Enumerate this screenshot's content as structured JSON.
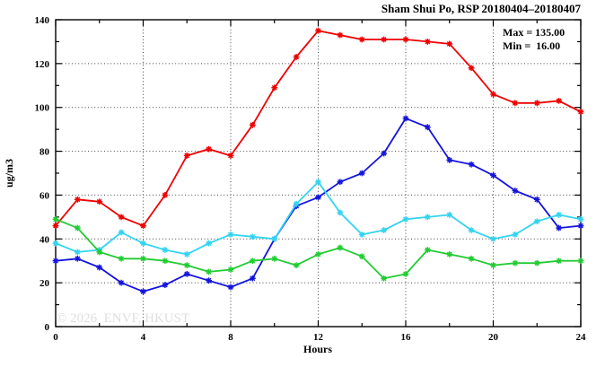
{
  "title": "Sham Shui Po, RSP 20180404–20180407",
  "annotation": {
    "max_label": "Max = 135.00",
    "min_label": "Min =  16.00",
    "max_value": 135.0,
    "min_value": 16.0
  },
  "watermark": "© 2026  ENVF, HKUST",
  "colors": {
    "series_red": "#ee0000",
    "series_blue": "#1414dd",
    "series_cyan": "#33d4f0",
    "series_green": "#22cc33",
    "grid": "#444444",
    "axis": "#000000",
    "watermark": "#dedede"
  },
  "chart_data": {
    "type": "line",
    "title": "Sham Shui Po, RSP 20180404–20180407",
    "xlabel": "Hours",
    "ylabel": "ug/m3",
    "xlim": [
      0,
      24
    ],
    "ylim": [
      0,
      140
    ],
    "x_major_ticks": [
      0,
      4,
      8,
      12,
      16,
      20,
      24
    ],
    "x_minor_ticks": [
      2,
      6,
      10,
      14,
      18,
      22
    ],
    "y_major_ticks": [
      0,
      20,
      40,
      60,
      80,
      100,
      120,
      140
    ],
    "y_minor_ticks": [
      10,
      30,
      50,
      70,
      90,
      110,
      130
    ],
    "grid": true,
    "legend_position": "none",
    "marker": "asterisk",
    "x": [
      0,
      1,
      2,
      3,
      4,
      5,
      6,
      7,
      8,
      9,
      10,
      11,
      12,
      13,
      14,
      15,
      16,
      17,
      18,
      19,
      20,
      21,
      22,
      23,
      24
    ],
    "series": [
      {
        "name": "red-series",
        "color": "#ee0000",
        "values": [
          46,
          58,
          57,
          50,
          46,
          60,
          78,
          81,
          78,
          92,
          109,
          123,
          135,
          133,
          131,
          131,
          131,
          130,
          129,
          118,
          106,
          102,
          102,
          103,
          98
        ]
      },
      {
        "name": "blue-series",
        "color": "#1414dd",
        "values": [
          30,
          31,
          27,
          20,
          16,
          19,
          24,
          21,
          18,
          22,
          40,
          55,
          59,
          66,
          70,
          79,
          95,
          91,
          76,
          74,
          69,
          62,
          58,
          45,
          46
        ]
      },
      {
        "name": "cyan-series",
        "color": "#33d4f0",
        "values": [
          38,
          34,
          35,
          43,
          38,
          35,
          33,
          38,
          42,
          41,
          40,
          56,
          66,
          52,
          42,
          44,
          49,
          50,
          51,
          44,
          40,
          42,
          48,
          51,
          49
        ]
      },
      {
        "name": "green-series",
        "color": "#22cc33",
        "values": [
          49,
          45,
          34,
          31,
          31,
          30,
          28,
          25,
          26,
          30,
          31,
          28,
          33,
          36,
          32,
          22,
          24,
          35,
          33,
          31,
          28,
          29,
          29,
          30,
          30
        ]
      }
    ]
  }
}
